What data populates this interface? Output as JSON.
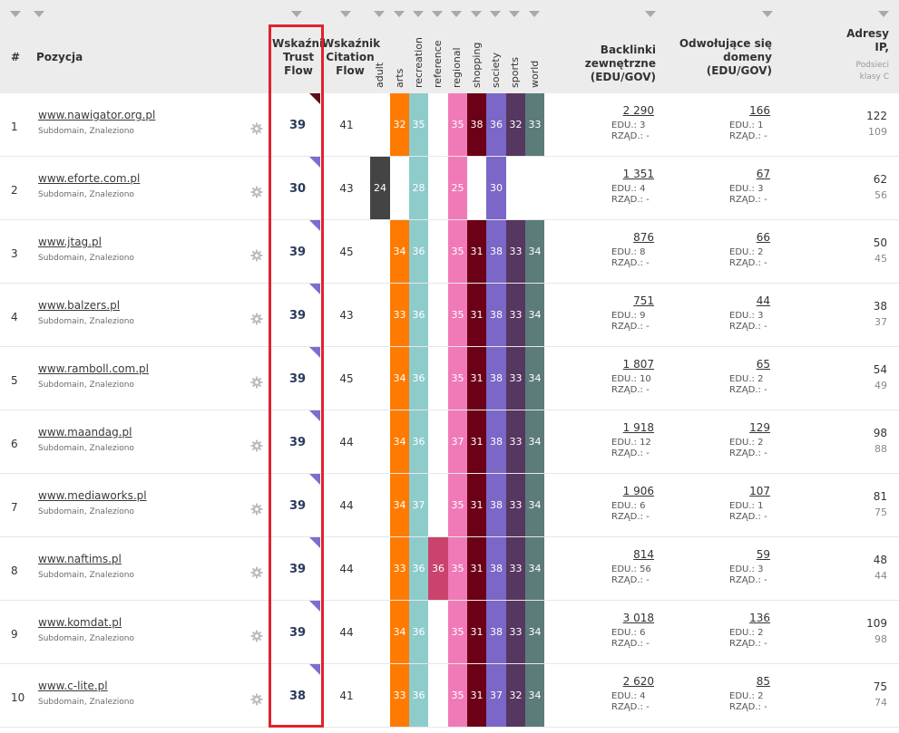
{
  "header": {
    "num": "#",
    "pozycja": "Pozycja",
    "trust_flow": [
      "Wskaźnik",
      "Trust",
      "Flow"
    ],
    "citation_flow": [
      "Wskaźnik",
      "Citation",
      "Flow"
    ],
    "categories": [
      "adult",
      "arts",
      "recreation",
      "reference",
      "regional",
      "shopping",
      "society",
      "sports",
      "world"
    ],
    "backlinks": [
      "Backlinki",
      "zewnętrzne",
      "(EDU/GOV)"
    ],
    "domains": [
      "Odwołujące się",
      "domeny",
      "(EDU/GOV)"
    ],
    "ip": [
      "Adresy",
      "IP,"
    ],
    "ip_sub": [
      "Podsieci",
      "klasy C"
    ]
  },
  "colors": {
    "adult": "#444444",
    "arts": "#ff7a00",
    "recreation": "#8ecccc",
    "reference": "#c9436d",
    "regional": "#f07ab7",
    "shopping": "#6b0016",
    "society": "#7b67c7",
    "sports": "#563760",
    "world": "#5c7c79",
    "highlight": "#e0232b"
  },
  "rows": [
    {
      "n": "1",
      "site": "www.nawigator.org.pl",
      "sub": "Subdomain, Znaleziono",
      "tf": "39",
      "cf": "41",
      "adult": "",
      "arts": "32",
      "recreation": "35",
      "reference": "",
      "regional": "35",
      "shopping": "38",
      "society": "36",
      "sports": "32",
      "world": "33",
      "bl": "2 290",
      "bl_edu": "EDU.: 3",
      "bl_gov": "RZĄD.: -",
      "dom": "166",
      "dom_edu": "EDU.: 1",
      "dom_gov": "RZĄD.: -",
      "ip": "122",
      "ipc": "109"
    },
    {
      "n": "2",
      "site": "www.eforte.com.pl",
      "sub": "Subdomain, Znaleziono",
      "tf": "30",
      "cf": "43",
      "adult": "24",
      "arts": "",
      "recreation": "28",
      "reference": "",
      "regional": "25",
      "shopping": "",
      "society": "30",
      "sports": "",
      "world": "",
      "bl": "1 351",
      "bl_edu": "EDU.: 4",
      "bl_gov": "RZĄD.: -",
      "dom": "67",
      "dom_edu": "EDU.: 3",
      "dom_gov": "RZĄD.: -",
      "ip": "62",
      "ipc": "56"
    },
    {
      "n": "3",
      "site": "www.jtag.pl",
      "sub": "Subdomain, Znaleziono",
      "tf": "39",
      "cf": "45",
      "adult": "",
      "arts": "34",
      "recreation": "36",
      "reference": "",
      "regional": "35",
      "shopping": "31",
      "society": "38",
      "sports": "33",
      "world": "34",
      "bl": "876",
      "bl_edu": "EDU.: 8",
      "bl_gov": "RZĄD.: -",
      "dom": "66",
      "dom_edu": "EDU.: 2",
      "dom_gov": "RZĄD.: -",
      "ip": "50",
      "ipc": "45"
    },
    {
      "n": "4",
      "site": "www.balzers.pl",
      "sub": "Subdomain, Znaleziono",
      "tf": "39",
      "cf": "43",
      "adult": "",
      "arts": "33",
      "recreation": "36",
      "reference": "",
      "regional": "35",
      "shopping": "31",
      "society": "38",
      "sports": "33",
      "world": "34",
      "bl": "751",
      "bl_edu": "EDU.: 9",
      "bl_gov": "RZĄD.: -",
      "dom": "44",
      "dom_edu": "EDU.: 3",
      "dom_gov": "RZĄD.: -",
      "ip": "38",
      "ipc": "37"
    },
    {
      "n": "5",
      "site": "www.ramboll.com.pl",
      "sub": "Subdomain, Znaleziono",
      "tf": "39",
      "cf": "45",
      "adult": "",
      "arts": "34",
      "recreation": "36",
      "reference": "",
      "regional": "35",
      "shopping": "31",
      "society": "38",
      "sports": "33",
      "world": "34",
      "bl": "1 807",
      "bl_edu": "EDU.: 10",
      "bl_gov": "RZĄD.: -",
      "dom": "65",
      "dom_edu": "EDU.: 2",
      "dom_gov": "RZĄD.: -",
      "ip": "54",
      "ipc": "49"
    },
    {
      "n": "6",
      "site": "www.maandag.pl",
      "sub": "Subdomain, Znaleziono",
      "tf": "39",
      "cf": "44",
      "adult": "",
      "arts": "34",
      "recreation": "36",
      "reference": "",
      "regional": "37",
      "shopping": "31",
      "society": "38",
      "sports": "33",
      "world": "34",
      "bl": "1 918",
      "bl_edu": "EDU.: 12",
      "bl_gov": "RZĄD.: -",
      "dom": "129",
      "dom_edu": "EDU.: 2",
      "dom_gov": "RZĄD.: -",
      "ip": "98",
      "ipc": "88"
    },
    {
      "n": "7",
      "site": "www.mediaworks.pl",
      "sub": "Subdomain, Znaleziono",
      "tf": "39",
      "cf": "44",
      "adult": "",
      "arts": "34",
      "recreation": "37",
      "reference": "",
      "regional": "35",
      "shopping": "31",
      "society": "38",
      "sports": "33",
      "world": "34",
      "bl": "1 906",
      "bl_edu": "EDU.: 6",
      "bl_gov": "RZĄD.: -",
      "dom": "107",
      "dom_edu": "EDU.: 1",
      "dom_gov": "RZĄD.: -",
      "ip": "81",
      "ipc": "75"
    },
    {
      "n": "8",
      "site": "www.naftims.pl",
      "sub": "Subdomain, Znaleziono",
      "tf": "39",
      "cf": "44",
      "adult": "",
      "arts": "33",
      "recreation": "36",
      "reference": "36",
      "regional": "35",
      "shopping": "31",
      "society": "38",
      "sports": "33",
      "world": "34",
      "bl": "814",
      "bl_edu": "EDU.: 56",
      "bl_gov": "RZĄD.: -",
      "dom": "59",
      "dom_edu": "EDU.: 3",
      "dom_gov": "RZĄD.: -",
      "ip": "48",
      "ipc": "44"
    },
    {
      "n": "9",
      "site": "www.komdat.pl",
      "sub": "Subdomain, Znaleziono",
      "tf": "39",
      "cf": "44",
      "adult": "",
      "arts": "34",
      "recreation": "36",
      "reference": "",
      "regional": "35",
      "shopping": "31",
      "society": "38",
      "sports": "33",
      "world": "34",
      "bl": "3 018",
      "bl_edu": "EDU.: 6",
      "bl_gov": "RZĄD.: -",
      "dom": "136",
      "dom_edu": "EDU.: 2",
      "dom_gov": "RZĄD.: -",
      "ip": "109",
      "ipc": "98"
    },
    {
      "n": "10",
      "site": "www.c-lite.pl",
      "sub": "Subdomain, Znaleziono",
      "tf": "38",
      "cf": "41",
      "adult": "",
      "arts": "33",
      "recreation": "36",
      "reference": "",
      "regional": "35",
      "shopping": "31",
      "society": "37",
      "sports": "32",
      "world": "34",
      "bl": "2 620",
      "bl_edu": "EDU.: 4",
      "bl_gov": "RZĄD.: -",
      "dom": "85",
      "dom_edu": "EDU.: 2",
      "dom_gov": "RZĄD.: -",
      "ip": "75",
      "ipc": "74"
    }
  ]
}
